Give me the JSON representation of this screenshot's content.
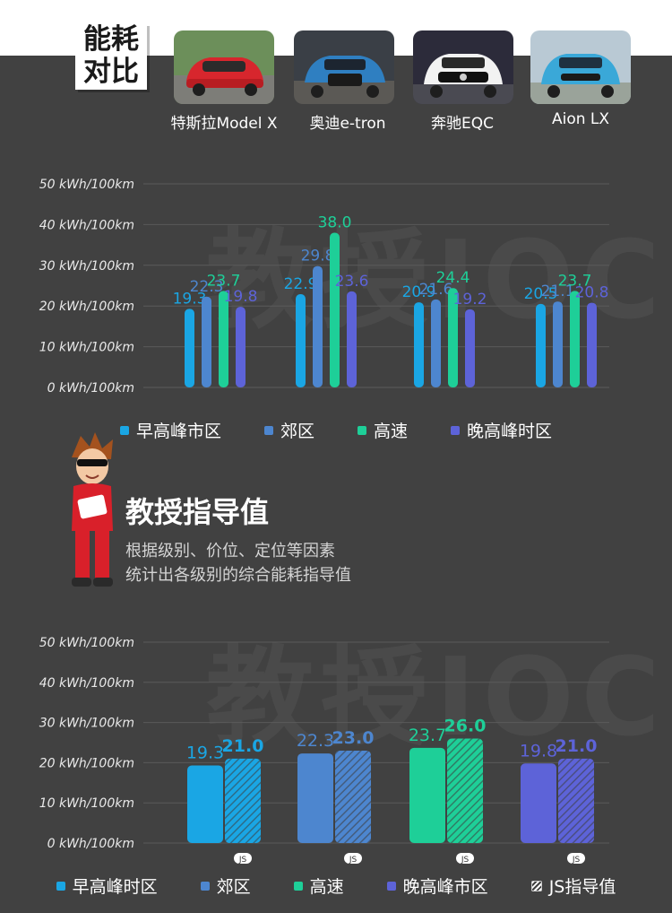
{
  "header": {
    "title_line1": "能耗",
    "title_line2": "对比"
  },
  "watermark": "教授IOC",
  "cars": [
    {
      "name": "特斯拉Model X",
      "color": "#d7262d"
    },
    {
      "name": "奥迪e-tron",
      "color": "#2f7fc1"
    },
    {
      "name": "奔驰EQC",
      "color": "#f2f2f2"
    },
    {
      "name": "Aion LX",
      "color": "#3aa8d8"
    }
  ],
  "colors": {
    "morning": "#1aa6e4",
    "suburb": "#4d86cf",
    "highway": "#1ecf98",
    "evening": "#5d63d8",
    "grid": "#5a5a5a",
    "background": "#414141"
  },
  "section": {
    "title": "教授指导值",
    "desc_line1": "根据级别、价位、定位等因素",
    "desc_line2": "统计出各级别的综合能耗指导值"
  },
  "chart_data": [
    {
      "type": "bar",
      "categories": [
        "特斯拉Model X",
        "奥迪e-tron",
        "奔驰EQC",
        "Aion LX"
      ],
      "series": [
        {
          "name": "早高峰市区",
          "values": [
            19.3,
            22.9,
            20.9,
            20.5
          ]
        },
        {
          "name": "郊区",
          "values": [
            22.3,
            29.8,
            21.6,
            21.1
          ]
        },
        {
          "name": "高速",
          "values": [
            23.7,
            38.0,
            24.4,
            23.7
          ]
        },
        {
          "name": "晚高峰时区",
          "values": [
            19.8,
            23.6,
            19.2,
            20.8
          ]
        }
      ],
      "yticks": [
        "0 kWh/100km",
        "10 kWh/100km",
        "20 kWh/100km",
        "30 kWh/100km",
        "40 kWh/100km",
        "50 kWh/100km"
      ],
      "ylim": [
        0,
        50
      ],
      "grid": true,
      "legend_position": "bottom"
    },
    {
      "type": "bar",
      "groups": [
        {
          "name": "早高峰时区",
          "value": 19.3,
          "js_value": 21.0,
          "js_label": "JS"
        },
        {
          "name": "郊区",
          "value": 22.3,
          "js_value": 23.0,
          "js_label": "JS"
        },
        {
          "name": "高速",
          "value": 23.7,
          "js_value": 26.0,
          "js_label": "JS"
        },
        {
          "name": "晚高峰市区",
          "value": 19.8,
          "js_value": 21.0,
          "js_label": "JS"
        }
      ],
      "js_series_name": "JS指导值",
      "yticks": [
        "0 kWh/100km",
        "10 kWh/100km",
        "20 kWh/100km",
        "30 kWh/100km",
        "40 kWh/100km",
        "50 kWh/100km"
      ],
      "ylim": [
        0,
        50
      ],
      "grid": true,
      "legend_position": "bottom"
    }
  ]
}
